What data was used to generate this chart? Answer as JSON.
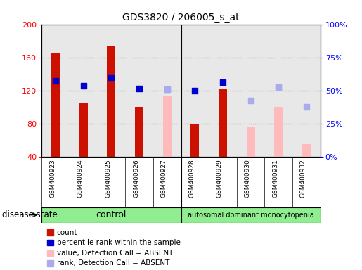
{
  "title": "GDS3820 / 206005_s_at",
  "samples": [
    "GSM400923",
    "GSM400924",
    "GSM400925",
    "GSM400926",
    "GSM400927",
    "GSM400928",
    "GSM400929",
    "GSM400930",
    "GSM400931",
    "GSM400932"
  ],
  "count_values": [
    166,
    105,
    173,
    100,
    null,
    80,
    122,
    null,
    null,
    null
  ],
  "percentile_rank": [
    132,
    126,
    136,
    122,
    121,
    120,
    130,
    null,
    124,
    null
  ],
  "absent_value": [
    null,
    null,
    null,
    null,
    114,
    null,
    null,
    76,
    100,
    55
  ],
  "absent_rank": [
    null,
    null,
    null,
    null,
    121,
    null,
    null,
    108,
    124,
    100
  ],
  "percentile_dark_blue": [
    true,
    true,
    true,
    true,
    false,
    true,
    true,
    false,
    false,
    false
  ],
  "ylim_left": [
    40,
    200
  ],
  "ylim_right": [
    0,
    100
  ],
  "yticks_left": [
    40,
    80,
    120,
    160,
    200
  ],
  "yticks_right": [
    0,
    25,
    50,
    75,
    100
  ],
  "yticklabels_right": [
    "0%",
    "25%",
    "50%",
    "75%",
    "100%"
  ],
  "bar_color_dark": "#cc1100",
  "bar_color_absent": "#ffbbbb",
  "dot_color_dark": "#0000cc",
  "dot_color_light": "#aaaaee",
  "control_label": "control",
  "disease_label": "autosomal dominant monocytopenia",
  "group_label": "disease state",
  "legend_items": [
    {
      "label": "count",
      "color": "#cc1100"
    },
    {
      "label": "percentile rank within the sample",
      "color": "#0000cc"
    },
    {
      "label": "value, Detection Call = ABSENT",
      "color": "#ffbbbb"
    },
    {
      "label": "rank, Detection Call = ABSENT",
      "color": "#aaaaee"
    }
  ],
  "bar_width": 0.3,
  "plot_bg_color": "#e8e8e8",
  "fig_width": 5.15,
  "fig_height": 3.84,
  "dpi": 100
}
